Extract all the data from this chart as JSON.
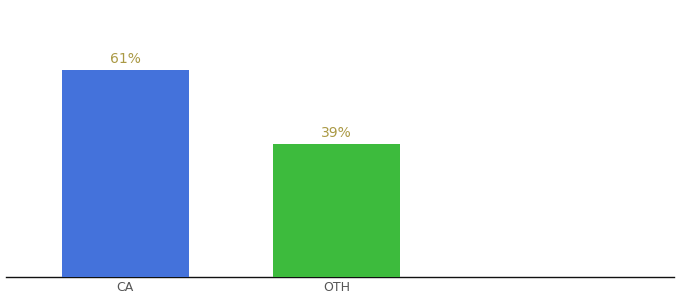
{
  "categories": [
    "CA",
    "OTH"
  ],
  "values": [
    61,
    39
  ],
  "bar_colors": [
    "#4472db",
    "#3dbb3d"
  ],
  "label_color": "#aa9944",
  "label_fontsize": 10,
  "xlabel_fontsize": 9,
  "background_color": "#ffffff",
  "bar_width": 0.18,
  "ylim": [
    0,
    80
  ],
  "label_format": "{}%",
  "x_positions": [
    0.22,
    0.52
  ],
  "xlim": [
    0.05,
    1.0
  ]
}
